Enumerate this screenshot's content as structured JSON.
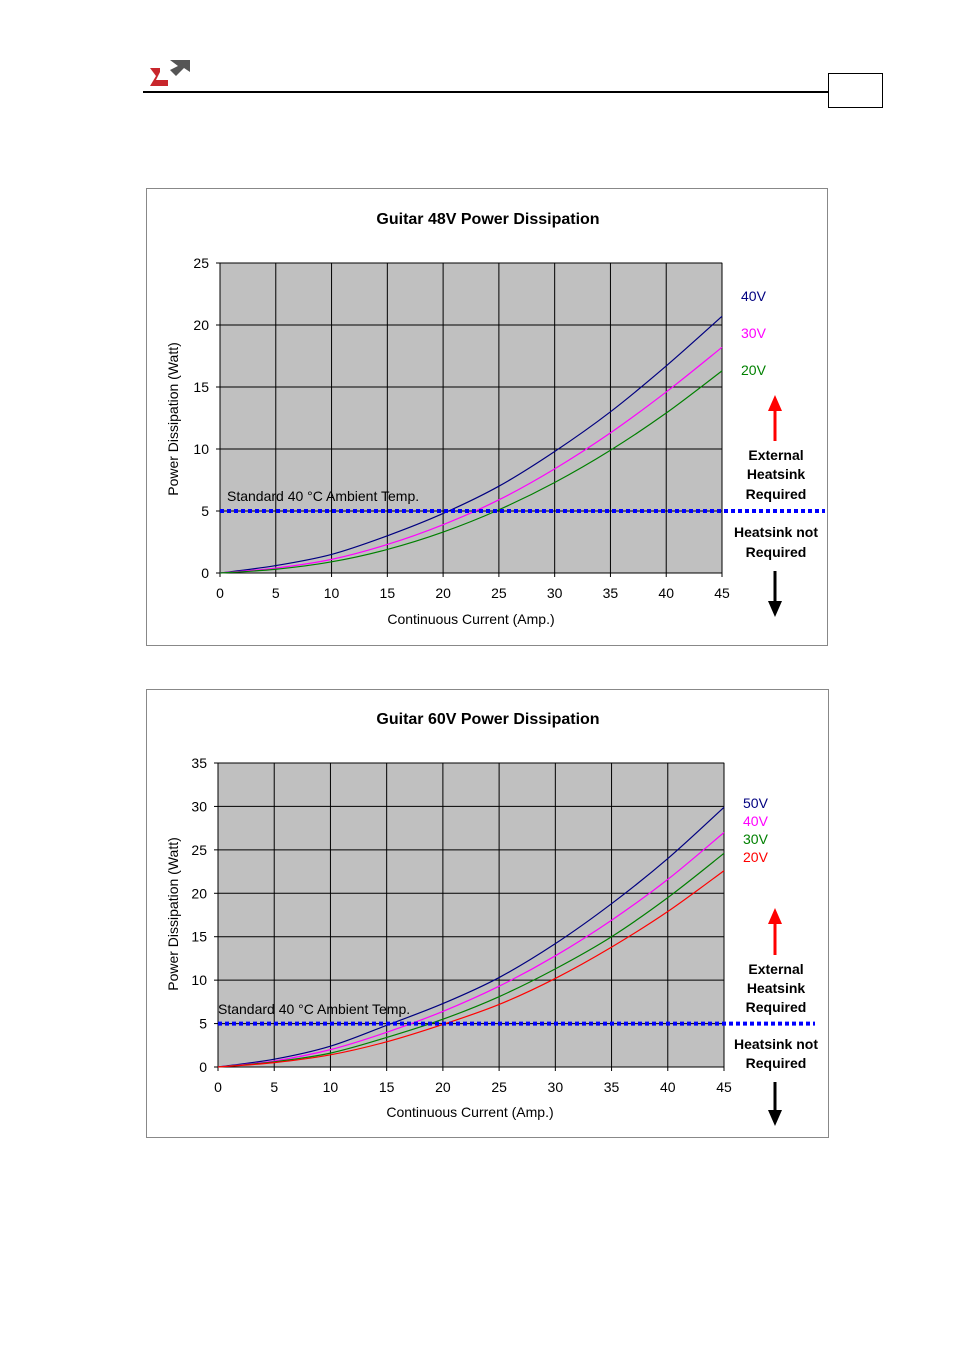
{
  "header": {
    "logo_colors": {
      "red": "#c8262c",
      "gray": "#555555"
    }
  },
  "annotations": {
    "ambient_label": "Standard 40 °C Ambient Temp.",
    "above_label": [
      "External",
      "Heatsink",
      "Required"
    ],
    "below_label": [
      "Heatsink not",
      "Required"
    ],
    "arrow_up_color": "#ff0000",
    "arrow_down_color": "#000000",
    "threshold_color": "#0000ff"
  },
  "chart_data": [
    {
      "type": "line",
      "title": "Guitar 48V Power Dissipation",
      "xlabel": "Continuous Current (Amp.)",
      "ylabel": "Power Dissipation (Watt)",
      "xlim": [
        0,
        45
      ],
      "ylim": [
        0,
        25
      ],
      "xticks": [
        0,
        5,
        10,
        15,
        20,
        25,
        30,
        35,
        40,
        45
      ],
      "yticks": [
        0,
        5,
        10,
        15,
        20,
        25
      ],
      "grid": true,
      "plot_background": "#c0c0c0",
      "legend_placement": "right",
      "threshold": 5,
      "x": [
        0,
        5,
        10,
        15,
        20,
        25,
        30,
        35,
        40,
        45
      ],
      "series": [
        {
          "name": "40V",
          "color": "#000080",
          "values": [
            0,
            0.6,
            1.5,
            3.0,
            4.8,
            7.0,
            9.8,
            13.0,
            16.7,
            20.7
          ]
        },
        {
          "name": "30V",
          "color": "#ff00ff",
          "values": [
            0,
            0.4,
            1.1,
            2.3,
            3.9,
            5.9,
            8.4,
            11.3,
            14.6,
            18.2
          ]
        },
        {
          "name": "20V",
          "color": "#008000",
          "values": [
            0,
            0.3,
            0.9,
            1.9,
            3.3,
            5.1,
            7.3,
            9.9,
            12.9,
            16.3
          ]
        }
      ]
    },
    {
      "type": "line",
      "title": "Guitar 60V Power Dissipation",
      "xlabel": "Continuous Current (Amp.)",
      "ylabel": "Power Dissipation (Watt)",
      "xlim": [
        0,
        45
      ],
      "ylim": [
        0,
        35
      ],
      "xticks": [
        0,
        5,
        10,
        15,
        20,
        25,
        30,
        35,
        40,
        45
      ],
      "yticks": [
        0,
        5,
        10,
        15,
        20,
        25,
        30,
        35
      ],
      "grid": true,
      "plot_background": "#c0c0c0",
      "legend_placement": "right",
      "threshold": 5,
      "x": [
        0,
        5,
        10,
        15,
        20,
        25,
        30,
        35,
        40,
        45
      ],
      "series": [
        {
          "name": "50V",
          "color": "#000080",
          "values": [
            0,
            0.9,
            2.4,
            4.8,
            7.3,
            10.3,
            14.2,
            18.8,
            24.0,
            29.9
          ]
        },
        {
          "name": "40V",
          "color": "#ff00ff",
          "values": [
            0,
            0.7,
            2.0,
            4.0,
            6.4,
            9.3,
            12.8,
            16.9,
            21.6,
            27.0
          ]
        },
        {
          "name": "30V",
          "color": "#008000",
          "values": [
            0,
            0.6,
            1.6,
            3.4,
            5.5,
            8.1,
            11.3,
            15.0,
            19.5,
            24.6
          ]
        },
        {
          "name": "20V",
          "color": "#ff0000",
          "values": [
            0,
            0.5,
            1.4,
            2.9,
            4.9,
            7.2,
            10.2,
            13.8,
            17.9,
            22.6
          ]
        }
      ]
    }
  ]
}
